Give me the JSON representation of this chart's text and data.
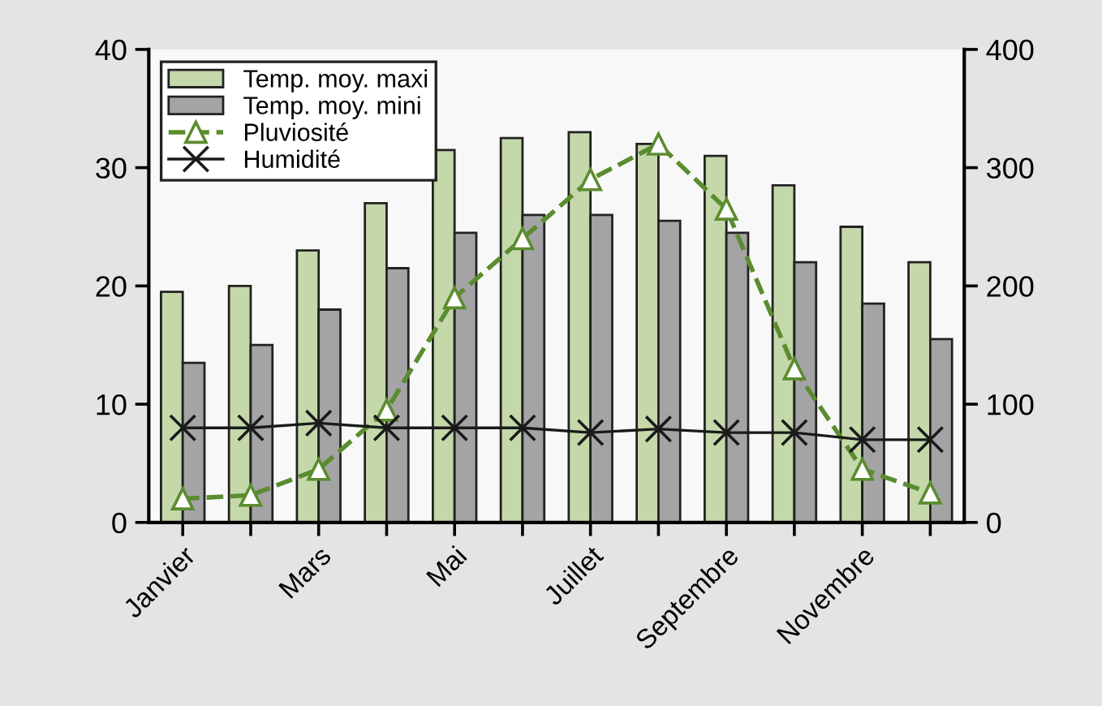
{
  "chart_data": {
    "type": "bar",
    "categories": [
      "Janvier",
      null,
      "Mars",
      null,
      "Mai",
      null,
      "Juillet",
      null,
      "Septembre",
      null,
      "Novembre",
      null
    ],
    "series": [
      {
        "name": "Temp. moy. maxi",
        "color": "#c4d8aa",
        "values": [
          19.5,
          20,
          23,
          27,
          31.5,
          32.5,
          33,
          32,
          31,
          28.5,
          25,
          22
        ]
      },
      {
        "name": "Temp. moy. mini",
        "color": "#a4a4a6",
        "values": [
          13.5,
          15,
          18,
          21.5,
          24.5,
          26,
          26,
          25.5,
          24.5,
          22,
          18.5,
          15.5
        ]
      },
      {
        "name": "Pluviosité",
        "type": "line",
        "axis": "y2",
        "color": "#5b8c2f",
        "marker": "triangle",
        "line_style": "dashed",
        "values": [
          20,
          23,
          45,
          95,
          190,
          240,
          290,
          320,
          265,
          130,
          45,
          25
        ]
      },
      {
        "name": "Humidité",
        "type": "line",
        "axis": "y2",
        "color": "#1a1a1a",
        "marker": "cross",
        "line_style": "solid",
        "values": [
          80,
          80,
          84,
          80,
          80,
          80,
          76,
          79,
          76,
          76,
          70,
          70
        ]
      }
    ],
    "ylim": [
      0,
      40
    ],
    "yticks": [
      0,
      10,
      20,
      30,
      40
    ],
    "y2lim": [
      0,
      400
    ],
    "y2ticks": [
      0,
      100,
      200,
      300,
      400
    ],
    "legend": "top left",
    "grid": false
  }
}
